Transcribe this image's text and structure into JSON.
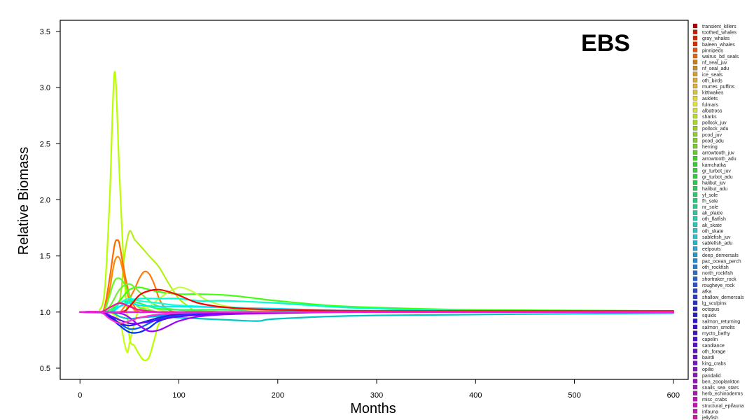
{
  "chart_data": {
    "type": "line",
    "title": "EBS",
    "xlabel": "Months",
    "ylabel": "Relative Biomass",
    "xlim": [
      -20,
      615
    ],
    "ylim": [
      0.4,
      3.6
    ],
    "xticks": [
      0,
      100,
      200,
      300,
      400,
      500,
      600
    ],
    "yticks": [
      0.5,
      1.0,
      1.5,
      2.0,
      2.5,
      3.0,
      3.5
    ],
    "xtick_labels": [
      "0",
      "100",
      "200",
      "300",
      "400",
      "500",
      "600"
    ],
    "ytick_labels": [
      "0.5",
      "1.0",
      "1.5",
      "2.0",
      "2.5",
      "3.0",
      "3.5"
    ],
    "legend_position": "right-outside",
    "legend": [
      "transient_killers",
      "toothed_whales",
      "gray_whales",
      "baleen_whales",
      "pinnipeds",
      "walrus_bd_seals",
      "nf_seal_juv",
      "nf_seal_adu",
      "ice_seals",
      "oth_birds",
      "murres_puffins",
      "kittiwakes",
      "auklets",
      "fulmars",
      "albatross",
      "sharks",
      "pollock_juv",
      "pollock_adu",
      "pcod_juv",
      "pcod_adu",
      "herring",
      "arrowtooth_juv",
      "arrowtooth_adu",
      "kamchatka",
      "gr_turbot_juv",
      "gr_turbot_adu",
      "halibut_juv",
      "halibut_adu",
      "yf_sole",
      "fh_sole",
      "nr_sole",
      "ak_plaice",
      "oth_flatfish",
      "ak_skate",
      "oth_skate",
      "sablefish_juv",
      "sablefish_adu",
      "eelpouts",
      "deep_demersals",
      "pac_ocean_perch",
      "oth_rockfish",
      "north_rockfish",
      "shortraker_rock",
      "rougheye_rock",
      "atka",
      "shallow_demersals",
      "lg_sculpins",
      "octopus",
      "squids",
      "salmon_returning",
      "salmon_smolts",
      "mycto_bathy",
      "capelin",
      "sandlance",
      "oth_forage",
      "bairdi",
      "king_crabs",
      "opilio",
      "pandalid",
      "ben_zooplankton",
      "snails_sea_stars",
      "herb_echinoderms",
      "misc_crabs",
      "structural_epifauna",
      "infauna",
      "jellyfish"
    ],
    "legend_colors": [
      "#b30000",
      "#cc1a00",
      "#cc2900",
      "#d13300",
      "#e0560f",
      "#e06a14",
      "#cc7a1a",
      "#c98a2b",
      "#d6a02e",
      "#d9a836",
      "#e0b23a",
      "#d9c235",
      "#e6d43c",
      "#e6e040",
      "#d2e03a",
      "#b8e02c",
      "#a8d92a",
      "#9ccf24",
      "#8ccf2a",
      "#82cc2c",
      "#74cc2a",
      "#60d02a",
      "#48cc2c",
      "#3cc83a",
      "#3ccc3c",
      "#36c844",
      "#30c64e",
      "#2ac858",
      "#2acc6a",
      "#2ac878",
      "#2ac888",
      "#2ac898",
      "#2acca8",
      "#2ac6b4",
      "#28c4c0",
      "#2ac2cc",
      "#2ab4cc",
      "#2aa6cc",
      "#2898cc",
      "#288acc",
      "#2a7ec8",
      "#2a70c4",
      "#2a62c6",
      "#2a56c8",
      "#2a4ac6",
      "#2a3ec4",
      "#2a32c2",
      "#2a26c2",
      "#2a1ec4",
      "#3218c6",
      "#3a14c4",
      "#4412c4",
      "#4e12c6",
      "#5812c4",
      "#6214c2",
      "#6c14c0",
      "#7616be",
      "#8016bc",
      "#8a16ba",
      "#9416b8",
      "#9e18b6",
      "#a818b4",
      "#b41ab4",
      "#be1ab2",
      "#c81aae",
      "#cc1aa0"
    ],
    "series": [
      {
        "name": "kittiwakes",
        "color": "#b8ff00",
        "x": [
          0,
          15,
          20,
          25,
          30,
          35,
          40,
          45,
          50,
          55,
          60,
          65,
          70,
          75,
          80,
          90,
          100,
          120,
          150,
          200,
          300,
          400,
          500,
          600
        ],
        "values": [
          1.0,
          1.0,
          1.02,
          1.2,
          2.0,
          3.14,
          2.2,
          1.3,
          0.78,
          0.7,
          0.62,
          0.57,
          0.6,
          0.75,
          0.9,
          0.98,
          1.0,
          1.0,
          1.0,
          1.0,
          1.0,
          1.0,
          1.0,
          1.0
        ]
      },
      {
        "name": "auklets",
        "color": "#c8ff10",
        "x": [
          0,
          20,
          30,
          40,
          45,
          48,
          50,
          55,
          60,
          70,
          80,
          90,
          100,
          120,
          150,
          200,
          300,
          600
        ],
        "values": [
          1.0,
          1.0,
          1.0,
          0.92,
          0.72,
          0.64,
          0.72,
          0.9,
          1.02,
          1.05,
          1.02,
          1.0,
          0.98,
          0.97,
          0.99,
          1.0,
          1.0,
          1.0
        ]
      },
      {
        "name": "murres_puffins",
        "color": "#b4f014",
        "x": [
          0,
          20,
          30,
          40,
          45,
          50,
          55,
          60,
          70,
          80,
          90,
          100,
          110,
          120,
          150,
          200,
          300,
          600
        ],
        "values": [
          1.0,
          1.0,
          1.0,
          1.1,
          1.5,
          1.72,
          1.65,
          1.6,
          1.5,
          1.4,
          1.25,
          1.12,
          1.05,
          1.0,
          1.0,
          1.0,
          1.0,
          1.0
        ]
      },
      {
        "name": "walrus_bd_seals",
        "color": "#ff6a00",
        "x": [
          0,
          20,
          25,
          30,
          35,
          38,
          40,
          45,
          50,
          55,
          60,
          70,
          80,
          100,
          150,
          200,
          300,
          600
        ],
        "values": [
          1.0,
          1.0,
          1.05,
          1.3,
          1.6,
          1.64,
          1.6,
          1.35,
          1.15,
          1.05,
          1.0,
          1.0,
          1.0,
          1.0,
          1.0,
          1.0,
          1.0,
          1.0
        ]
      },
      {
        "name": "pinnipeds",
        "color": "#ff8800",
        "x": [
          0,
          20,
          25,
          30,
          35,
          40,
          45,
          50,
          55,
          60,
          70,
          80,
          100,
          150,
          200,
          300,
          600
        ],
        "values": [
          1.0,
          1.0,
          1.02,
          1.2,
          1.45,
          1.48,
          1.3,
          1.1,
          1.02,
          1.0,
          1.0,
          1.0,
          1.0,
          1.0,
          1.0,
          1.0,
          1.0
        ]
      },
      {
        "name": "nf_seal_juv",
        "color": "#ff7a10",
        "x": [
          0,
          30,
          40,
          45,
          50,
          55,
          60,
          65,
          70,
          75,
          80,
          85,
          90,
          100,
          150,
          200,
          300,
          600
        ],
        "values": [
          1.0,
          1.0,
          1.0,
          1.05,
          1.12,
          1.2,
          1.3,
          1.36,
          1.34,
          1.25,
          1.12,
          1.05,
          1.02,
          1.0,
          1.0,
          1.0,
          1.0,
          1.0
        ]
      },
      {
        "name": "arrowtooth_adu",
        "color": "#60ff20",
        "x": [
          0,
          20,
          25,
          30,
          35,
          40,
          45,
          50,
          55,
          60,
          70,
          80,
          100,
          150,
          200,
          300,
          600
        ],
        "values": [
          1.0,
          1.0,
          1.02,
          1.15,
          1.28,
          1.3,
          1.25,
          1.15,
          1.08,
          1.04,
          1.02,
          1.0,
          1.0,
          1.0,
          1.0,
          1.0,
          1.0
        ]
      },
      {
        "name": "pcod_adu",
        "color": "#40ff10",
        "x": [
          0,
          20,
          30,
          40,
          50,
          60,
          70,
          80,
          100,
          120,
          150,
          180,
          200,
          250,
          300,
          400,
          600
        ],
        "values": [
          1.0,
          1.0,
          1.0,
          1.1,
          1.2,
          1.22,
          1.2,
          1.18,
          1.16,
          1.16,
          1.15,
          1.12,
          1.1,
          1.06,
          1.04,
          1.02,
          1.01
        ]
      },
      {
        "name": "arrowtooth_juv",
        "color": "#70f030",
        "x": [
          0,
          20,
          30,
          40,
          50,
          60,
          70,
          80,
          100,
          150,
          200,
          300,
          600
        ],
        "values": [
          1.0,
          1.0,
          1.05,
          1.2,
          1.25,
          1.18,
          1.1,
          1.05,
          1.02,
          1.0,
          1.0,
          1.0,
          1.0
        ]
      },
      {
        "name": "halibut_adu",
        "color": "#20ff60",
        "x": [
          0,
          20,
          30,
          40,
          50,
          60,
          70,
          80,
          100,
          120,
          150,
          200,
          300,
          600
        ],
        "values": [
          1.0,
          1.0,
          1.02,
          1.08,
          1.1,
          1.08,
          1.05,
          1.03,
          1.02,
          1.02,
          1.02,
          1.01,
          1.0,
          1.0
        ]
      },
      {
        "name": "pcod_juv",
        "color": "#c0ff40",
        "x": [
          0,
          60,
          70,
          80,
          90,
          100,
          110,
          120,
          130,
          150,
          200,
          300,
          600
        ],
        "values": [
          1.0,
          1.0,
          1.05,
          1.12,
          1.18,
          1.22,
          1.2,
          1.15,
          1.1,
          1.05,
          1.0,
          1.0,
          1.0
        ]
      },
      {
        "name": "sablefish_juv",
        "color": "#00ffd0",
        "x": [
          0,
          30,
          40,
          50,
          60,
          80,
          100,
          120,
          150,
          200,
          250,
          300,
          400,
          600
        ],
        "values": [
          1.0,
          1.0,
          1.05,
          1.1,
          1.12,
          1.12,
          1.12,
          1.1,
          1.1,
          1.08,
          1.05,
          1.03,
          1.01,
          1.0
        ]
      },
      {
        "name": "eelpouts",
        "color": "#10ffe0",
        "x": [
          0,
          30,
          40,
          50,
          60,
          80,
          100,
          150,
          200,
          300,
          600
        ],
        "values": [
          1.0,
          1.0,
          1.08,
          1.12,
          1.1,
          1.08,
          1.06,
          1.04,
          1.02,
          1.0,
          1.0
        ]
      },
      {
        "name": "deep_demersals",
        "color": "#00e8ff",
        "x": [
          0,
          30,
          40,
          50,
          60,
          80,
          100,
          150,
          200,
          300,
          600
        ],
        "values": [
          1.0,
          1.0,
          1.05,
          1.08,
          1.06,
          1.05,
          1.05,
          1.04,
          1.03,
          1.01,
          1.0
        ]
      },
      {
        "name": "sablefish_adu",
        "color": "#00c8c0",
        "x": [
          0,
          30,
          40,
          50,
          60,
          80,
          100,
          150,
          180,
          200,
          300,
          600
        ],
        "values": [
          1.0,
          1.0,
          0.96,
          0.94,
          0.95,
          0.96,
          0.95,
          0.93,
          0.92,
          0.94,
          0.97,
          0.99
        ]
      },
      {
        "name": "oth_rockfish",
        "color": "#0098ff",
        "x": [
          0,
          20,
          30,
          40,
          50,
          60,
          80,
          100,
          150,
          200,
          300,
          600
        ],
        "values": [
          1.0,
          1.0,
          0.95,
          0.9,
          0.92,
          0.95,
          0.97,
          0.98,
          0.99,
          1.0,
          1.0,
          1.0
        ]
      },
      {
        "name": "lg_sculpins",
        "color": "#0060ff",
        "x": [
          0,
          20,
          30,
          40,
          50,
          60,
          70,
          80,
          100,
          150,
          200,
          300,
          600
        ],
        "values": [
          1.0,
          1.0,
          0.97,
          0.9,
          0.85,
          0.86,
          0.9,
          0.94,
          0.97,
          0.99,
          1.0,
          1.0,
          1.0
        ]
      },
      {
        "name": "squids",
        "color": "#0030ff",
        "x": [
          0,
          20,
          30,
          40,
          50,
          60,
          70,
          80,
          100,
          150,
          200,
          300,
          600
        ],
        "values": [
          1.0,
          1.0,
          0.95,
          0.88,
          0.82,
          0.82,
          0.86,
          0.92,
          0.96,
          0.99,
          1.0,
          1.0,
          1.0
        ]
      },
      {
        "name": "capelin",
        "color": "#2020e0",
        "x": [
          0,
          20,
          30,
          40,
          50,
          60,
          80,
          100,
          150,
          200,
          300,
          600
        ],
        "values": [
          1.0,
          1.0,
          0.96,
          0.9,
          0.88,
          0.9,
          0.95,
          0.98,
          1.0,
          1.0,
          1.0,
          1.0
        ]
      },
      {
        "name": "king_crabs",
        "color": "#6a00ff",
        "x": [
          0,
          20,
          30,
          40,
          50,
          60,
          80,
          100,
          150,
          200,
          300,
          600
        ],
        "values": [
          1.0,
          1.0,
          0.97,
          0.93,
          0.9,
          0.9,
          0.93,
          0.96,
          0.99,
          1.0,
          1.0,
          1.0
        ]
      },
      {
        "name": "pandalid",
        "color": "#9a00ff",
        "x": [
          0,
          20,
          40,
          50,
          60,
          70,
          80,
          90,
          100,
          120,
          150,
          200,
          300,
          600
        ],
        "values": [
          1.0,
          1.0,
          0.99,
          0.95,
          0.88,
          0.83,
          0.84,
          0.88,
          0.92,
          0.96,
          0.98,
          0.99,
          1.0,
          1.0
        ]
      },
      {
        "name": "infauna",
        "color": "#ff30d0",
        "x": [
          0,
          20,
          30,
          40,
          50,
          60,
          80,
          100,
          150,
          200,
          300,
          600
        ],
        "values": [
          1.0,
          1.0,
          0.94,
          0.9,
          0.92,
          0.95,
          0.98,
          0.99,
          1.0,
          1.0,
          1.0,
          1.0
        ]
      },
      {
        "name": "jellyfish",
        "color": "#ff1090",
        "x": [
          0,
          20,
          30,
          40,
          50,
          60,
          80,
          100,
          150,
          200,
          300,
          600
        ],
        "values": [
          1.0,
          1.0,
          1.04,
          1.08,
          1.05,
          1.02,
          1.0,
          1.0,
          1.0,
          1.0,
          1.0,
          1.0
        ]
      },
      {
        "name": "transient_killers",
        "color": "#ff0000",
        "x": [
          0,
          40,
          50,
          60,
          70,
          80,
          90,
          100,
          120,
          150,
          200,
          300,
          400,
          600
        ],
        "values": [
          1.0,
          1.0,
          1.05,
          1.15,
          1.19,
          1.2,
          1.18,
          1.15,
          1.08,
          1.04,
          1.02,
          1.01,
          1.01,
          1.01
        ]
      },
      {
        "name": "toothed_whales",
        "color": "#ff2020",
        "x": [
          0,
          100,
          200,
          300,
          400,
          500,
          600
        ],
        "values": [
          1.0,
          1.0,
          1.0,
          1.01,
          1.01,
          1.01,
          1.01
        ]
      },
      {
        "name": "structural_epifauna",
        "color": "#e020ff",
        "x": [
          0,
          100,
          200,
          300,
          400,
          500,
          600
        ],
        "values": [
          1.0,
          1.0,
          1.0,
          1.0,
          1.0,
          1.0,
          1.0
        ]
      }
    ]
  }
}
